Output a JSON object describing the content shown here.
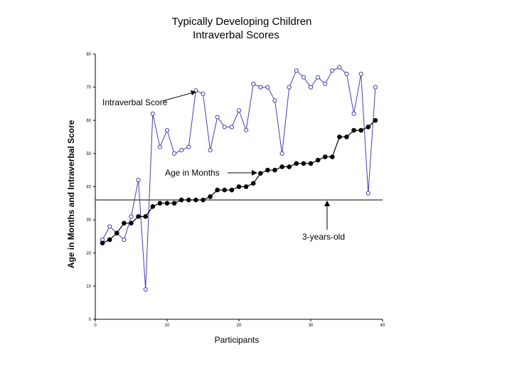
{
  "chart_data": {
    "type": "line",
    "title": "Typically Developing Children",
    "subtitle": "Intraverbal Scores",
    "xlabel": "Participants",
    "ylabel": "Age in Months and Intraverbal Score",
    "xlim": [
      0,
      40
    ],
    "ylim": [
      0,
      80
    ],
    "xticks": [
      0,
      10,
      20,
      30,
      40
    ],
    "yticks": [
      0,
      10,
      20,
      30,
      40,
      50,
      60,
      70,
      80
    ],
    "x": [
      1,
      2,
      3,
      4,
      5,
      6,
      7,
      8,
      9,
      10,
      11,
      12,
      13,
      14,
      15,
      16,
      17,
      18,
      19,
      20,
      21,
      22,
      23,
      24,
      25,
      26,
      27,
      28,
      29,
      30,
      31,
      32,
      33,
      34,
      35,
      36,
      37,
      38,
      39
    ],
    "series": [
      {
        "name": "Intraverbal Score",
        "color": "#4040b0",
        "marker": "open-circle",
        "values": [
          24,
          28,
          26,
          24,
          31,
          42,
          9,
          62,
          52,
          57,
          50,
          51,
          52,
          69,
          68,
          51,
          61,
          58,
          58,
          63,
          57,
          71,
          70,
          70,
          66,
          50,
          70,
          75,
          73,
          70,
          73,
          71,
          75,
          76,
          74,
          62,
          74,
          38,
          70
        ]
      },
      {
        "name": "Age in Months",
        "color": "#000000",
        "marker": "filled-circle",
        "values": [
          23,
          24,
          26,
          29,
          29,
          31,
          31,
          34,
          35,
          35,
          35,
          36,
          36,
          36,
          36,
          37,
          39,
          39,
          39,
          40,
          40,
          41,
          44,
          45,
          45,
          46,
          46,
          47,
          47,
          47,
          48,
          49,
          49,
          55,
          55,
          57,
          57,
          58,
          60
        ]
      }
    ],
    "reference_line": {
      "y": 36,
      "label": "3-years-old"
    },
    "annotations": {
      "intraverbal": "Intraverbal Score",
      "age": "Age in Months",
      "threshold": "3-years-old"
    }
  }
}
